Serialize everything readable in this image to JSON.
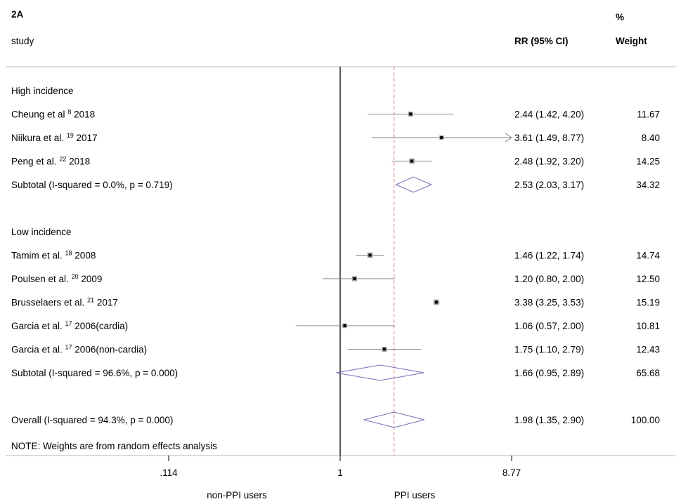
{
  "header": {
    "panel_label": "2A",
    "study_col": "study",
    "rr_col": "RR (95% CI)",
    "weight_col_line1": "%",
    "weight_col_line2": "Weight"
  },
  "chart_data": {
    "type": "forest",
    "scale": "log",
    "null_value": 1,
    "overall_estimate": 1.98,
    "xlim": [
      0.114,
      8.77
    ],
    "x_ticks": [
      ".114",
      "1",
      "8.77"
    ],
    "x_tick_values": [
      0.114,
      1,
      8.77
    ],
    "xlabel_left": "non-PPI users",
    "xlabel_right": "PPI users",
    "note": "NOTE: Weights are from random effects analysis",
    "rows": [
      {
        "kind": "group",
        "label": "High incidence"
      },
      {
        "kind": "study",
        "name": "Cheung et al",
        "ref": "8",
        "year": "2018",
        "rr": 2.44,
        "lo": 1.42,
        "hi": 4.2,
        "rr_text": "2.44 (1.42, 4.20)",
        "weight": "11.67"
      },
      {
        "kind": "study",
        "name": "Niikura et al.",
        "ref": "19",
        "year": "2017",
        "rr": 3.61,
        "lo": 1.49,
        "hi": 8.77,
        "arrow": true,
        "rr_text": "3.61 (1.49, 8.77)",
        "weight": "8.40"
      },
      {
        "kind": "study",
        "name": "Peng et al.",
        "ref": "22",
        "year": "2018",
        "rr": 2.48,
        "lo": 1.92,
        "hi": 3.2,
        "rr_text": "2.48 (1.92, 3.20)",
        "weight": "14.25"
      },
      {
        "kind": "subtotal",
        "label": "Subtotal  (I-squared = 0.0%, p = 0.719)",
        "rr": 2.53,
        "lo": 2.03,
        "hi": 3.17,
        "rr_text": "2.53 (2.03, 3.17)",
        "weight": "34.32"
      },
      {
        "kind": "blank"
      },
      {
        "kind": "group",
        "label": "Low incidence"
      },
      {
        "kind": "study",
        "name": "Tamim et al.",
        "ref": "18",
        "year": "2008",
        "rr": 1.46,
        "lo": 1.22,
        "hi": 1.74,
        "rr_text": "1.46 (1.22, 1.74)",
        "weight": "14.74"
      },
      {
        "kind": "study",
        "name": "Poulsen et al.",
        "ref": "20",
        "year": "2009",
        "rr": 1.2,
        "lo": 0.8,
        "hi": 2.0,
        "rr_text": "1.20 (0.80, 2.00)",
        "weight": "12.50"
      },
      {
        "kind": "study",
        "name": "Brusselaers et al.",
        "ref": "21",
        "year": "2017",
        "rr": 3.38,
        "lo": 3.25,
        "hi": 3.53,
        "rr_text": "3.38 (3.25, 3.53)",
        "weight": "15.19"
      },
      {
        "kind": "study",
        "name": "Garcia et al.",
        "ref": "17",
        "year": "2006(cardia)",
        "rr": 1.06,
        "lo": 0.57,
        "hi": 2.0,
        "rr_text": "1.06 (0.57, 2.00)",
        "weight": "10.81"
      },
      {
        "kind": "study",
        "name": "Garcia et al.",
        "ref": "17",
        "year": "2006(non-cardia)",
        "rr": 1.75,
        "lo": 1.1,
        "hi": 2.79,
        "rr_text": "1.75 (1.10, 2.79)",
        "weight": "12.43"
      },
      {
        "kind": "subtotal",
        "label": "Subtotal  (I-squared = 96.6%, p = 0.000)",
        "rr": 1.66,
        "lo": 0.95,
        "hi": 2.89,
        "rr_text": "1.66 (0.95, 2.89)",
        "weight": "65.68"
      },
      {
        "kind": "blank"
      },
      {
        "kind": "overall",
        "label": "Overall  (I-squared = 94.3%, p = 0.000)",
        "rr": 1.98,
        "lo": 1.35,
        "hi": 2.9,
        "rr_text": "1.98 (1.35, 2.90)",
        "weight": "100.00"
      }
    ],
    "colors": {
      "text": "#000000",
      "ci_line": "#7f7f7f",
      "diamond": "#6f6fb8",
      "overall_line": "#e07a8e",
      "rule": "#b5b5b5"
    }
  }
}
